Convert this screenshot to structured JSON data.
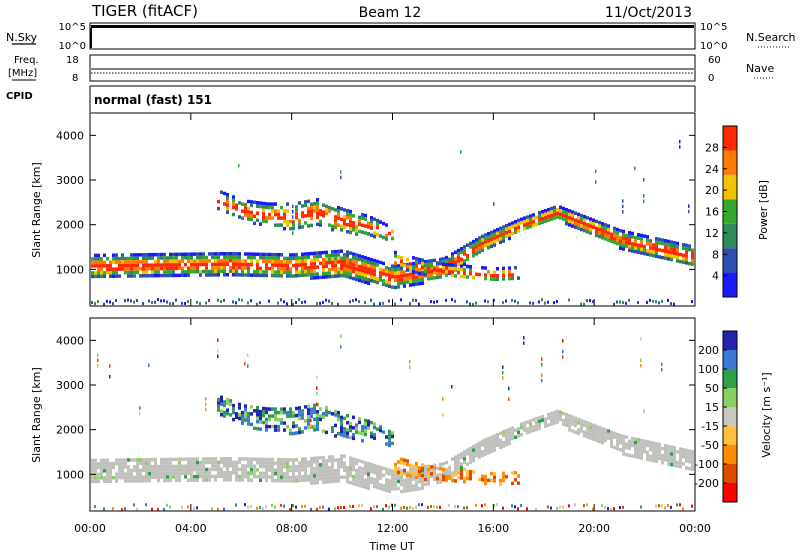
{
  "header": {
    "radar": "TIGER (fitACF)",
    "beam": "Beam 12",
    "date": "11/Oct/2013"
  },
  "nsky_panel": {
    "label": "N.Sky",
    "right_label": "N.Search",
    "ticks_left": [
      "10^5",
      "10^0"
    ],
    "ticks_right": [
      "10^5",
      "10^0"
    ]
  },
  "freq_panel": {
    "label_line1": "Freq.",
    "label_line2": "[MHz]",
    "right_label": "Nave",
    "ticks_left": [
      "18",
      "8"
    ],
    "ticks_right": [
      "60",
      "0"
    ]
  },
  "cpid_panel": {
    "label": "CPID",
    "mode": "normal (fast) 151"
  },
  "colors": {
    "power_scale": [
      "#1a1aff",
      "#2e4fb0",
      "#2f8a5a",
      "#35a832",
      "#f2c100",
      "#ff7a00",
      "#ff2a00"
    ],
    "velocity_scale": [
      "#2323b0",
      "#3a78d8",
      "#2fa04a",
      "#88d060",
      "#c8c8c0",
      "#ffbf40",
      "#ff8c00",
      "#e04b00",
      "#ff0000"
    ],
    "ground_scatter": "#c0c0bc"
  },
  "chart_data": [
    {
      "type": "heatmap",
      "name": "power",
      "ylabel": "Slant Range [km]",
      "ylim": [
        180,
        4500
      ],
      "yticks": [
        "1000",
        "2000",
        "3000",
        "4000"
      ],
      "xlim": [
        0,
        24
      ],
      "xticks": [
        "00:00",
        "04:00",
        "08:00",
        "12:00",
        "16:00",
        "20:00",
        "00:00"
      ],
      "colorbar": {
        "label": "Power [dB]",
        "range": [
          0,
          32
        ],
        "ticks": [
          "4",
          "8",
          "12",
          "16",
          "20",
          "24",
          "28"
        ]
      },
      "bands": [
        {
          "t": [
            0,
            5.5,
            8,
            10,
            11,
            12,
            14,
            15.5,
            17,
            18.5,
            21,
            24
          ],
          "center": [
            1100,
            1150,
            1100,
            1150,
            1000,
            850,
            1050,
            1600,
            2000,
            2300,
            1700,
            1300
          ],
          "width": [
            500,
            480,
            520,
            600,
            550,
            500,
            450,
            350,
            300,
            300,
            400,
            450
          ]
        },
        {
          "t": [
            12,
            13,
            14,
            15,
            16,
            17
          ],
          "center": [
            1250,
            1100,
            1000,
            950,
            900,
            950
          ],
          "width": [
            350,
            320,
            300,
            300,
            300,
            260
          ]
        },
        {
          "t": [
            5,
            6,
            7,
            8,
            9,
            10,
            11,
            12
          ],
          "center": [
            2600,
            2350,
            2250,
            2200,
            2300,
            2100,
            2000,
            1800
          ],
          "width": [
            400,
            450,
            500,
            600,
            600,
            550,
            450,
            300
          ]
        }
      ]
    },
    {
      "type": "heatmap",
      "name": "velocity",
      "ylabel": "Slant Range [km]",
      "xlabel": "Time UT",
      "ylim": [
        180,
        4500
      ],
      "yticks": [
        "1000",
        "2000",
        "3000",
        "4000"
      ],
      "xlim": [
        0,
        24
      ],
      "xticks": [
        "00:00",
        "04:00",
        "08:00",
        "12:00",
        "16:00",
        "20:00",
        "00:00"
      ],
      "colorbar": {
        "label": "Velocity [m s⁻¹]",
        "ticks": [
          "200",
          "100",
          "50",
          "15",
          "-15",
          "-50",
          "-100",
          "-200"
        ]
      },
      "bands": [
        {
          "t": [
            0,
            5.5,
            8,
            10,
            11,
            12,
            14,
            15.5,
            17,
            18.5,
            21,
            24
          ],
          "center": [
            1100,
            1150,
            1100,
            1150,
            1000,
            850,
            1050,
            1600,
            2000,
            2300,
            1700,
            1300
          ],
          "width": [
            500,
            480,
            520,
            600,
            550,
            500,
            450,
            350,
            300,
            300,
            400,
            450
          ]
        },
        {
          "t": [
            12,
            13,
            14,
            15,
            16,
            17
          ],
          "center": [
            1250,
            1100,
            1000,
            950,
            900,
            950
          ],
          "width": [
            350,
            320,
            300,
            300,
            300,
            260
          ]
        },
        {
          "t": [
            5,
            6,
            7,
            8,
            9,
            10,
            11,
            12
          ],
          "center": [
            2600,
            2350,
            2250,
            2200,
            2300,
            2100,
            2000,
            1800
          ],
          "width": [
            400,
            450,
            500,
            600,
            600,
            550,
            450,
            300
          ]
        }
      ]
    }
  ]
}
